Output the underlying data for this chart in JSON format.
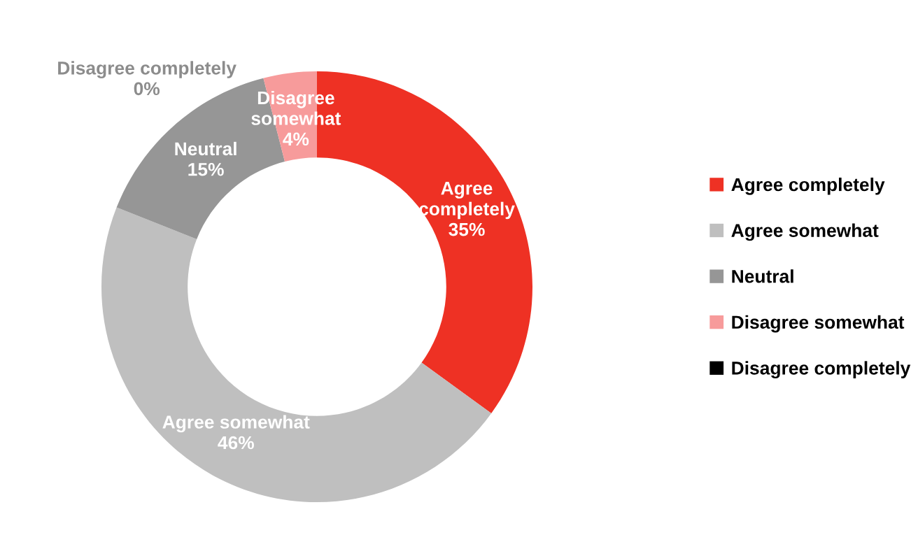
{
  "chart_data": {
    "type": "donut",
    "categories": [
      "Agree completely",
      "Agree somewhat",
      "Neutral",
      "Disagree somewhat",
      "Disagree completely"
    ],
    "values": [
      35,
      46,
      15,
      4,
      0
    ],
    "colors": [
      "#ee3124",
      "#bfbfbf",
      "#969696",
      "#f79b9b",
      "#000000"
    ],
    "value_labels": [
      "35%",
      "46%",
      "15%",
      "4%",
      "0%"
    ],
    "legend": "right"
  }
}
